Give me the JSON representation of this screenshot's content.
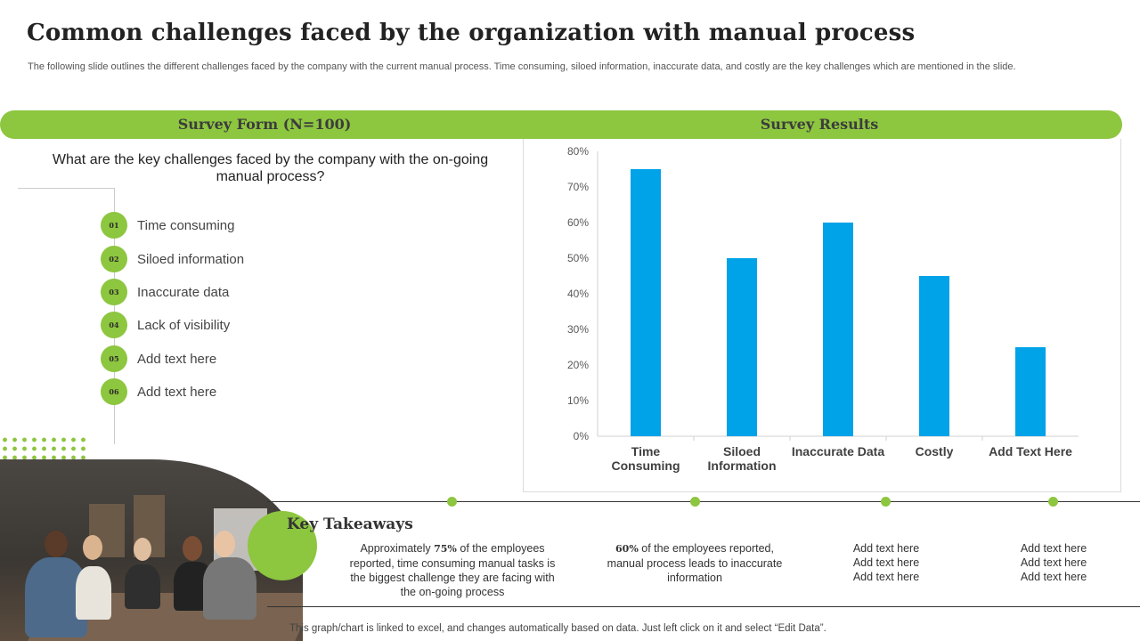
{
  "header": {
    "title": "Common challenges faced by the organization with manual process",
    "subtitle": "The following slide outlines the different challenges faced by the company with the current manual process. Time consuming, siloed information, inaccurate data, and costly are the key challenges which are mentioned in the slide."
  },
  "survey": {
    "form_label": "Survey Form (N=100)",
    "results_label": "Survey Results",
    "question": "What are the key challenges faced by the company with the on-going manual process?",
    "options": [
      {
        "num": "01",
        "text": "Time consuming"
      },
      {
        "num": "02",
        "text": "Siloed information"
      },
      {
        "num": "03",
        "text": "Inaccurate data"
      },
      {
        "num": "04",
        "text": "Lack of visibility"
      },
      {
        "num": "05",
        "text": "Add text here"
      },
      {
        "num": "06",
        "text": "Add text here"
      }
    ]
  },
  "chart_data": {
    "type": "bar",
    "categories": [
      "Time Consuming",
      "Siloed Information",
      "Inaccurate Data",
      "Costly",
      "Add Text Here"
    ],
    "values": [
      75,
      50,
      60,
      45,
      25
    ],
    "ylim": [
      0,
      80
    ],
    "yticks": [
      "0%",
      "10%",
      "20%",
      "30%",
      "40%",
      "50%",
      "60%",
      "70%",
      "80%"
    ],
    "title": "",
    "xlabel": "",
    "ylabel": "",
    "grid": false,
    "bar_color": "#00a2e8"
  },
  "takeaways": {
    "title": "Key Takeaways",
    "items": [
      {
        "bold": "75%",
        "pre": "Approximately ",
        "post": " of the employees reported, time consuming manual tasks is the biggest challenge they are facing with the on-going process"
      },
      {
        "bold": "60%",
        "pre": "",
        "post": " of the employees reported, manual process leads to inaccurate information"
      },
      {
        "bold": "",
        "pre": "Add text here Add text here Add text here",
        "post": ""
      },
      {
        "bold": "",
        "pre": "Add text here Add text here Add text here",
        "post": ""
      }
    ]
  },
  "footer": {
    "note": "This graph/chart is linked to excel, and changes automatically based on data. Just left click on it and select “Edit Data”."
  },
  "colors": {
    "accent_green": "#8dc63f",
    "bar_blue": "#00a2e8"
  }
}
